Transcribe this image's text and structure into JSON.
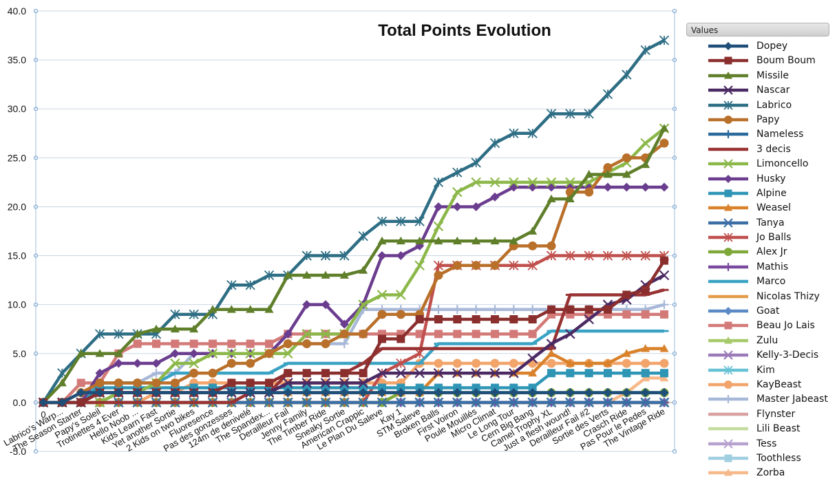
{
  "chart_data": {
    "type": "line",
    "title": "Total Points Evolution",
    "legend_title": "Values",
    "legend_position": "right",
    "grid": "horizontal",
    "ylim": [
      -5,
      40
    ],
    "yticks": [
      "-5.0",
      "0.0",
      "5.0",
      "10.0",
      "15.0",
      "20.0",
      "25.0",
      "30.0",
      "35.0",
      "40.0"
    ],
    "categories": [
      "0",
      "Labrico's Warp...",
      "The Season Starter",
      "Papy's Soleil",
      "Trotinettes 4 Ever",
      "Hello Noob ...",
      "Kids Learn Fast",
      "Yet another Sortie",
      "2 Kids on two bikes",
      "Fluoresence",
      "Pas des gonzesses",
      "124m de denivelé",
      "The Spandex...",
      "Derailleur Fail",
      "Jenny Family",
      "The Timber Ride",
      "Sneaky Sortie",
      "American Crappic",
      "Le Plan Du Saleve",
      "Kay 1",
      "STM Saleve",
      "Broken Balls",
      "First Voiron",
      "Poule Mouillés",
      "Micro Climat",
      "Le Long Tour",
      "Cern Big Bang",
      "Camel Trophy XL",
      "Just a flesh wound!",
      "Derailleur Fail #2",
      "Sortie des Verts",
      "Crasch Ride",
      "Pas Pour le Pedes",
      "The Vintage Ride"
    ],
    "series": [
      {
        "name": "Dopey",
        "color": "#1f4e79",
        "marker": "diamond",
        "values": [
          0,
          0,
          1,
          1,
          1,
          1,
          1,
          1,
          1,
          1,
          1,
          1,
          1,
          1,
          1,
          1,
          1,
          1,
          1,
          1,
          1,
          1,
          1,
          1,
          1,
          1,
          1,
          1,
          1,
          1,
          1,
          1,
          1,
          1
        ]
      },
      {
        "name": "Boum Boum",
        "color": "#8b2e2e",
        "marker": "square",
        "values": [
          0,
          0,
          0,
          1,
          1,
          1,
          1,
          1,
          1,
          1,
          2,
          2,
          2,
          3,
          3,
          3,
          3,
          3,
          6.5,
          6.5,
          8.5,
          8.5,
          8.5,
          8.5,
          8.5,
          8.5,
          8.5,
          9.5,
          9.5,
          9.5,
          9.5,
          11,
          11.5,
          14.5
        ]
      },
      {
        "name": "Missile",
        "color": "#5f7f2a",
        "marker": "triangle",
        "values": [
          0,
          2,
          5,
          5,
          5,
          7,
          7.5,
          7.5,
          7.5,
          9.5,
          9.5,
          9.5,
          9.5,
          13,
          13,
          13,
          13,
          13.5,
          16.5,
          16.5,
          16.5,
          16.5,
          16.5,
          16.5,
          16.5,
          16.5,
          17.5,
          20.8,
          20.8,
          23.3,
          23.3,
          23.3,
          24.3,
          28
        ]
      },
      {
        "name": "Nascar",
        "color": "#4b2a63",
        "marker": "x",
        "values": [
          0,
          0,
          0,
          1,
          1,
          1,
          1,
          1,
          1,
          1,
          1,
          1,
          1,
          2,
          2,
          2,
          2,
          2,
          3,
          3,
          3,
          3,
          3,
          3,
          3,
          3,
          4.5,
          6,
          7,
          8.5,
          10,
          10.5,
          12,
          13
        ]
      },
      {
        "name": "Labrico",
        "color": "#2e6e84",
        "marker": "star",
        "values": [
          0,
          3,
          5,
          7,
          7,
          7,
          7,
          9,
          9,
          9,
          12,
          12,
          13,
          13,
          15,
          15,
          15,
          17,
          18.5,
          18.5,
          18.5,
          22.5,
          23.5,
          24.5,
          26.5,
          27.5,
          27.5,
          29.5,
          29.5,
          29.5,
          31.5,
          33.5,
          36,
          37
        ]
      },
      {
        "name": "Papy",
        "color": "#b9702a",
        "marker": "circle",
        "values": [
          0,
          0,
          1,
          2,
          2,
          2,
          2,
          2,
          3,
          3,
          4,
          4,
          5,
          6,
          6,
          6,
          7,
          7,
          9,
          9,
          9,
          13,
          14,
          14,
          14,
          16,
          16,
          16,
          21.5,
          21.5,
          24,
          25,
          25,
          26.5
        ]
      },
      {
        "name": "Nameless",
        "color": "#2a6a9c",
        "marker": "plus",
        "values": [
          0,
          0,
          0,
          1,
          1,
          1,
          1,
          1,
          1,
          1,
          1,
          1,
          1,
          1,
          1,
          1,
          1,
          1,
          1,
          1,
          1,
          1,
          1,
          1,
          1,
          1,
          1,
          1,
          1,
          1,
          1,
          1,
          1,
          1
        ]
      },
      {
        "name": "3 decis",
        "color": "#993333",
        "marker": "dash",
        "values": [
          0,
          0,
          0,
          0,
          0,
          0,
          0,
          0,
          0,
          0,
          0,
          1,
          1,
          3,
          3,
          3,
          3,
          4,
          5.5,
          5.5,
          5.5,
          5.5,
          5.5,
          5.5,
          5.5,
          5.5,
          5.5,
          5.5,
          11,
          11,
          11,
          11,
          11,
          11.5
        ]
      },
      {
        "name": "Limoncello",
        "color": "#8cb84a",
        "marker": "x",
        "values": [
          0,
          0,
          0,
          0,
          1,
          1,
          2,
          4,
          4,
          5,
          5,
          5,
          5,
          5,
          7,
          7,
          7,
          10,
          11,
          11,
          14,
          18,
          21.5,
          22.5,
          22.5,
          22.5,
          22.5,
          22.5,
          22.5,
          22.5,
          23.5,
          24.5,
          26.5,
          28
        ]
      },
      {
        "name": "Husky",
        "color": "#6b3d8f",
        "marker": "diamond",
        "values": [
          0,
          0,
          0,
          3,
          4,
          4,
          4,
          5,
          5,
          5,
          5,
          5,
          5,
          7,
          10,
          10,
          8,
          10,
          15,
          15,
          16,
          20,
          20,
          20,
          21,
          22,
          22,
          22,
          22,
          22,
          22,
          22,
          22,
          22
        ]
      },
      {
        "name": "Alpine",
        "color": "#2f95b5",
        "marker": "square",
        "values": [
          0,
          0,
          0,
          1.5,
          1.5,
          1.5,
          1.5,
          1.5,
          1.5,
          1.5,
          1.5,
          1.5,
          1.5,
          1.5,
          1.5,
          1.5,
          1.5,
          1.5,
          1.5,
          1.5,
          1.5,
          1.5,
          1.5,
          1.5,
          1.5,
          1.5,
          1.5,
          3,
          3,
          3,
          3,
          3,
          3,
          3
        ]
      },
      {
        "name": "Weasel",
        "color": "#d9822b",
        "marker": "triangle",
        "values": [
          0,
          0,
          0,
          0,
          1,
          1,
          1,
          1,
          1,
          1,
          1,
          1,
          1,
          1,
          1,
          1,
          1,
          1,
          1,
          1,
          1,
          3,
          3,
          3,
          3,
          3,
          3,
          5,
          4,
          4,
          4,
          5,
          5.5,
          5.5
        ]
      },
      {
        "name": "Tanya",
        "color": "#3b6ea5",
        "marker": "x",
        "values": [
          0,
          0,
          0,
          0,
          0,
          0,
          0,
          0,
          0,
          0,
          0,
          0,
          0,
          0,
          0,
          0,
          0,
          0,
          0,
          0,
          0,
          0,
          0,
          0,
          0,
          0,
          0,
          0,
          0,
          0,
          0,
          0,
          0,
          0
        ]
      },
      {
        "name": "Jo Balls",
        "color": "#c0504d",
        "marker": "star",
        "values": [
          0,
          0,
          0,
          0,
          0,
          0,
          0,
          0,
          0,
          0,
          0,
          0,
          0,
          0,
          0,
          0,
          0,
          0,
          3,
          4,
          5,
          14,
          14,
          14,
          14,
          14,
          14,
          15,
          15,
          15,
          15,
          15,
          15,
          15
        ]
      },
      {
        "name": "Alex Jr",
        "color": "#7fa83a",
        "marker": "circle",
        "values": [
          0,
          0,
          0,
          0,
          0,
          0,
          0,
          0,
          0,
          0,
          0,
          0,
          0,
          0,
          0,
          0,
          0,
          0,
          0,
          1,
          1,
          1,
          1,
          1,
          1,
          1,
          1,
          1,
          1,
          1,
          1,
          1,
          1,
          1
        ]
      },
      {
        "name": "Mathis",
        "color": "#7a4aa0",
        "marker": "plus",
        "values": [
          0,
          0,
          0,
          0,
          0,
          0,
          0,
          0,
          0,
          0,
          0,
          0,
          0,
          0,
          0,
          0,
          0,
          0,
          0,
          0,
          0,
          0,
          0,
          0,
          0,
          0,
          0,
          0,
          0,
          0,
          0,
          0,
          0,
          0
        ]
      },
      {
        "name": "Marco",
        "color": "#3aa3c3",
        "marker": "dash",
        "values": [
          0,
          0,
          0,
          2,
          2,
          2,
          2,
          3,
          3,
          3,
          3,
          3,
          3,
          4,
          4,
          4,
          4,
          4,
          4,
          4,
          4,
          6,
          6,
          6,
          6,
          6,
          6,
          7.3,
          7.3,
          7.3,
          7.3,
          7.3,
          7.3,
          7.3
        ]
      },
      {
        "name": "Nicolas Thizy",
        "color": "#e49a4a",
        "marker": "dash",
        "values": [
          0,
          0,
          0,
          0,
          0,
          0,
          0,
          0,
          0,
          0,
          0,
          0,
          0,
          0,
          0,
          0,
          0,
          0,
          0,
          0,
          0,
          0,
          0,
          0,
          0,
          0,
          0,
          0,
          0,
          0,
          0,
          0,
          0,
          0
        ]
      },
      {
        "name": "Goat",
        "color": "#5b8ac6",
        "marker": "diamond",
        "values": [
          0,
          0,
          0,
          0,
          0,
          0,
          0,
          0,
          0,
          0,
          0,
          0,
          0,
          0,
          0,
          0,
          0,
          0,
          0,
          0,
          0,
          0,
          0,
          0,
          0,
          0,
          0,
          0,
          0,
          0,
          0,
          0,
          0,
          0
        ]
      },
      {
        "name": "Beau Jo Lais",
        "color": "#d37a78",
        "marker": "square",
        "values": [
          0,
          0,
          2,
          2,
          5,
          6,
          6,
          6,
          6,
          6,
          6,
          6,
          6,
          7,
          7,
          7,
          7,
          7,
          7,
          7,
          7,
          7,
          7,
          7,
          7,
          7,
          7,
          9,
          9,
          9,
          9,
          9,
          9,
          9
        ]
      },
      {
        "name": "Zulu",
        "color": "#a6c96a",
        "marker": "triangle",
        "values": [
          0,
          0,
          0,
          0,
          0,
          0,
          0,
          0,
          0,
          0,
          0,
          0,
          0,
          0,
          0,
          0,
          0,
          0,
          0,
          0,
          0,
          0,
          0,
          0,
          0,
          0,
          0,
          0,
          0,
          0,
          0,
          0,
          0,
          0
        ]
      },
      {
        "name": "Kelly-3-Decis",
        "color": "#9b7ab8",
        "marker": "x",
        "values": [
          0,
          0,
          0,
          0,
          0,
          0,
          0,
          0,
          0,
          0,
          0,
          0,
          0,
          0,
          0,
          0,
          0,
          0,
          0,
          0,
          0,
          0,
          0,
          0,
          0,
          0,
          0,
          0,
          0,
          0,
          0,
          0,
          0,
          0
        ]
      },
      {
        "name": "Kim",
        "color": "#66c2d4",
        "marker": "star",
        "values": [
          0,
          0,
          0,
          0,
          0,
          0,
          0,
          0,
          0,
          0,
          0,
          0,
          0,
          0,
          0,
          0,
          0,
          0,
          0,
          0,
          0,
          0,
          0,
          0,
          0,
          0,
          0,
          0,
          0,
          0,
          0,
          0,
          0,
          0
        ]
      },
      {
        "name": "KayBeast",
        "color": "#f2a46a",
        "marker": "circle",
        "values": [
          0,
          0,
          0,
          0,
          0,
          0,
          1,
          1,
          2,
          2,
          2,
          2,
          2,
          2,
          2,
          2,
          2,
          2,
          2,
          2,
          4,
          4,
          4,
          4,
          4,
          4,
          4,
          4,
          4,
          4,
          4,
          4,
          4,
          4
        ]
      },
      {
        "name": "Master Jabeast",
        "color": "#a8b8d8",
        "marker": "plus",
        "values": [
          0,
          0,
          1,
          2,
          2,
          2,
          3,
          3,
          5,
          5,
          5,
          5,
          5,
          6,
          6,
          6,
          6,
          9.5,
          9.5,
          9.5,
          9.5,
          9.5,
          9.5,
          9.5,
          9.5,
          9.5,
          9.5,
          9.5,
          9.5,
          9.5,
          9.5,
          9.5,
          9.5,
          10
        ]
      },
      {
        "name": "Flynster",
        "color": "#d8a0a0",
        "marker": "dash",
        "values": [
          0,
          0,
          0,
          0,
          0,
          0,
          0,
          0,
          0,
          0,
          0,
          0,
          0,
          0,
          0,
          0,
          0,
          0,
          0,
          0,
          0,
          0,
          0,
          0,
          0,
          0,
          0,
          0,
          0,
          0,
          0,
          0,
          0,
          0
        ]
      },
      {
        "name": "Lili Beast",
        "color": "#c4dca0",
        "marker": "dash",
        "values": [
          0,
          0,
          0,
          0,
          0,
          0,
          0,
          0,
          0,
          0,
          0,
          0,
          0,
          0,
          0,
          0,
          0,
          0,
          0,
          0,
          0,
          0,
          0,
          0,
          0,
          0,
          0,
          0,
          0,
          0,
          0,
          0,
          0,
          0
        ]
      },
      {
        "name": "Tess",
        "color": "#b7a2cf",
        "marker": "x",
        "values": [
          0,
          0,
          0,
          0,
          0,
          0,
          0,
          0,
          0,
          0,
          0,
          0,
          0,
          0,
          0,
          0,
          0,
          0,
          0,
          0,
          0,
          0,
          0,
          0,
          0,
          0,
          0,
          0,
          0,
          0,
          0,
          0,
          0,
          0
        ]
      },
      {
        "name": "Toothless",
        "color": "#9fcfe0",
        "marker": "square",
        "values": [
          0,
          0,
          0,
          0,
          0,
          0,
          0,
          0,
          0,
          0,
          0,
          0,
          0,
          0,
          0,
          0,
          0,
          0,
          0,
          0,
          0,
          0,
          0,
          0,
          0,
          0,
          0,
          0,
          0,
          0,
          0,
          0,
          0,
          0
        ]
      },
      {
        "name": "Zorba",
        "color": "#f7b98a",
        "marker": "triangle",
        "values": [
          0,
          0,
          0,
          0,
          0,
          0,
          0,
          0,
          0,
          0,
          0,
          0,
          0,
          0,
          0,
          0,
          0,
          0,
          0,
          0,
          0,
          0,
          0,
          0,
          0,
          0,
          0,
          0,
          0,
          0,
          0,
          1,
          2.5,
          2.5
        ]
      }
    ]
  }
}
